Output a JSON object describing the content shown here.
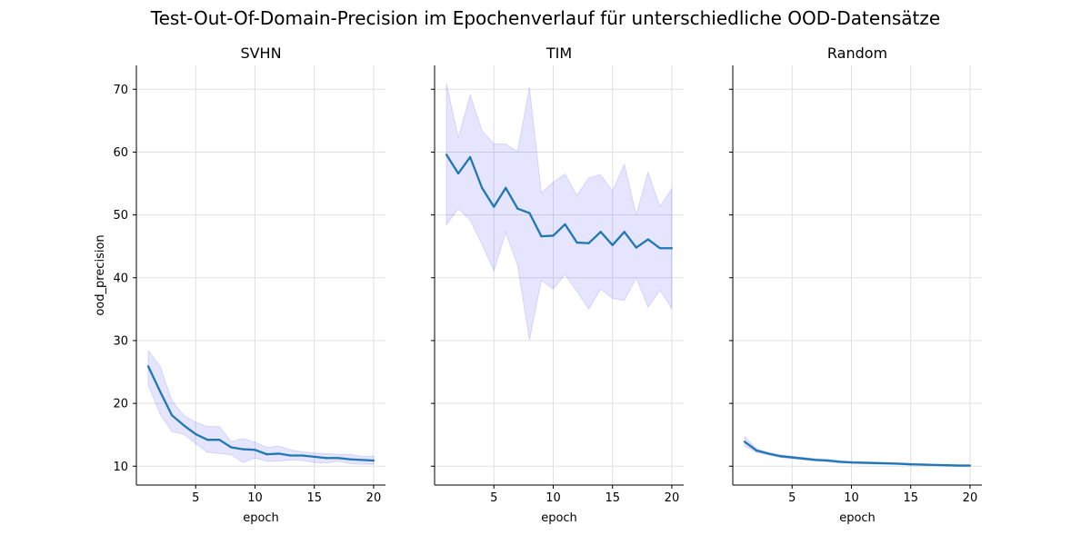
{
  "figure": {
    "suptitle": "Test-Out-Of-Domain-Precision im Epochenverlauf für unterschiedliche OOD-Datensätze"
  },
  "chart_data": [
    {
      "type": "line",
      "title": "SVHN",
      "xlabel": "epoch",
      "ylabel": "ood_precision",
      "xlim": [
        0.0,
        21.0
      ],
      "ylim": [
        7.0,
        73.8
      ],
      "xticks": [
        5,
        10,
        15,
        20
      ],
      "yticks": [
        10,
        20,
        30,
        40,
        50,
        60,
        70
      ],
      "grid": true,
      "line_color": "#1f77b4",
      "band_color": "#0000ff",
      "x": [
        1,
        2,
        3,
        4,
        5,
        6,
        7,
        8,
        9,
        10,
        11,
        12,
        13,
        14,
        15,
        16,
        17,
        18,
        19,
        20
      ],
      "series": [
        {
          "values": [
            25.9,
            21.9,
            18.1,
            16.5,
            15.1,
            14.2,
            14.2,
            13.0,
            12.7,
            12.6,
            11.9,
            12.0,
            11.7,
            11.7,
            11.5,
            11.3,
            11.3,
            11.1,
            11.0,
            10.9
          ],
          "lower": [
            22.9,
            18.3,
            15.5,
            15.1,
            13.6,
            12.2,
            12.0,
            11.8,
            10.6,
            11.3,
            10.8,
            10.8,
            11.0,
            10.9,
            10.6,
            10.5,
            10.8,
            10.4,
            10.3,
            10.3
          ],
          "upper": [
            28.4,
            25.9,
            20.4,
            18.1,
            17.0,
            16.3,
            16.3,
            13.9,
            14.4,
            13.8,
            13.0,
            13.2,
            12.6,
            12.3,
            12.1,
            12.0,
            11.9,
            11.9,
            11.6,
            11.6
          ]
        }
      ]
    },
    {
      "type": "line",
      "title": "TIM",
      "xlabel": "epoch",
      "xlim": [
        0.0,
        21.0
      ],
      "ylim": [
        7.0,
        73.8
      ],
      "xticks": [
        5,
        10,
        15,
        20
      ],
      "grid": true,
      "line_color": "#1f77b4",
      "band_color": "#0000ff",
      "x": [
        1,
        2,
        3,
        4,
        5,
        6,
        7,
        8,
        9,
        10,
        11,
        12,
        13,
        14,
        15,
        16,
        17,
        18,
        19,
        20
      ],
      "series": [
        {
          "values": [
            59.6,
            56.6,
            59.2,
            54.3,
            51.3,
            54.3,
            51.0,
            50.3,
            46.6,
            46.7,
            48.5,
            45.6,
            45.5,
            47.3,
            45.2,
            47.3,
            44.8,
            46.1,
            44.7,
            44.7
          ],
          "lower": [
            48.4,
            51.0,
            49.2,
            45.3,
            41.1,
            47.2,
            42.0,
            30.1,
            39.6,
            38.2,
            40.5,
            37.8,
            35.0,
            38.2,
            36.7,
            36.4,
            40.0,
            35.3,
            38.0,
            35.1
          ],
          "upper": [
            70.9,
            62.3,
            69.1,
            63.4,
            61.3,
            61.3,
            60.1,
            70.3,
            53.5,
            55.2,
            56.5,
            53.1,
            55.9,
            56.4,
            53.8,
            58.1,
            50.0,
            56.8,
            51.3,
            54.2
          ]
        }
      ]
    },
    {
      "type": "line",
      "title": "Random",
      "xlabel": "epoch",
      "xlim": [
        0.0,
        21.0
      ],
      "ylim": [
        7.0,
        73.8
      ],
      "xticks": [
        5,
        10,
        15,
        20
      ],
      "grid": true,
      "line_color": "#1f77b4",
      "band_color": "#0000ff",
      "x": [
        1,
        2,
        3,
        4,
        5,
        6,
        7,
        8,
        9,
        10,
        11,
        12,
        13,
        14,
        15,
        16,
        17,
        18,
        19,
        20
      ],
      "series": [
        {
          "values": [
            13.9,
            12.5,
            12.0,
            11.6,
            11.4,
            11.2,
            11.0,
            10.9,
            10.7,
            10.6,
            10.55,
            10.5,
            10.45,
            10.4,
            10.3,
            10.25,
            10.2,
            10.15,
            10.1,
            10.1
          ],
          "lower": [
            13.2,
            12.2,
            11.8,
            11.4,
            11.2,
            11.0,
            10.8,
            10.7,
            10.5,
            10.45,
            10.4,
            10.35,
            10.3,
            10.25,
            10.2,
            10.15,
            10.1,
            10.05,
            10.0,
            10.0
          ],
          "upper": [
            14.7,
            12.8,
            12.2,
            11.8,
            11.6,
            11.4,
            11.2,
            11.1,
            10.9,
            10.8,
            10.7,
            10.65,
            10.6,
            10.55,
            10.45,
            10.4,
            10.3,
            10.25,
            10.2,
            10.2
          ]
        }
      ]
    }
  ]
}
